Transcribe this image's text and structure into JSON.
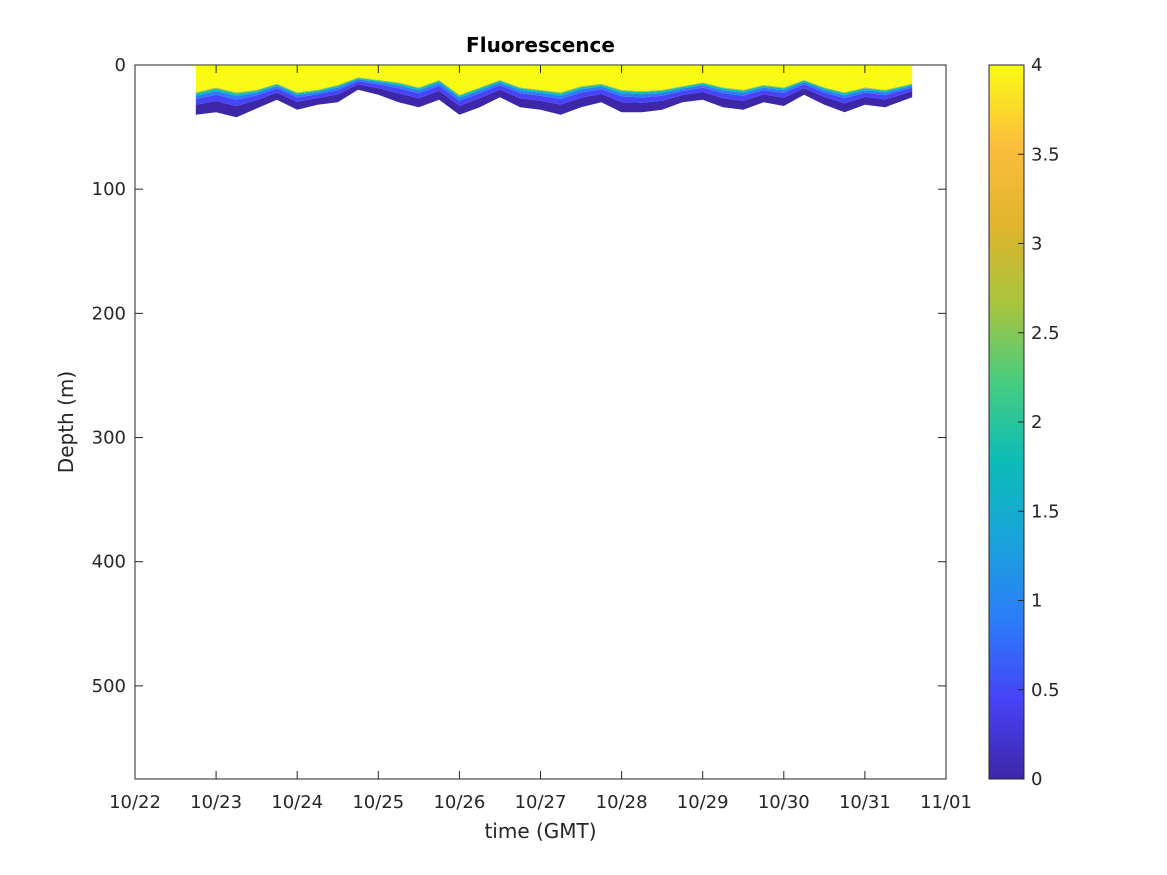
{
  "chart_data": {
    "type": "heatmap",
    "title": "Fluorescence",
    "xlabel": "time (GMT)",
    "ylabel": "Depth (m)",
    "x_range": [
      "10/22",
      "11/01"
    ],
    "x_ticks": [
      "10/22",
      "10/23",
      "10/24",
      "10/25",
      "10/26",
      "10/27",
      "10/28",
      "10/29",
      "10/30",
      "10/31",
      "11/01"
    ],
    "y_range": [
      0,
      575
    ],
    "y_reversed": true,
    "y_ticks": [
      0,
      100,
      200,
      300,
      400,
      500
    ],
    "colorbar": {
      "range": [
        0,
        4
      ],
      "ticks": [
        0,
        0.5,
        1,
        1.5,
        2,
        2.5,
        3,
        3.5,
        4
      ],
      "tick_labels": [
        "0",
        "0.5",
        "1",
        "1.5",
        "2",
        "2.5",
        "3",
        "3.5",
        "4"
      ],
      "colormap": "parula",
      "colors": [
        "#3e26a8",
        "#4743f8",
        "#2c7cf9",
        "#1aa3db",
        "#0bbcb7",
        "#48cc80",
        "#a9c43d",
        "#e1b42c",
        "#fcbe3c",
        "#f9fb15"
      ]
    },
    "data_extent": {
      "start": "10/22 18:00",
      "end": "10/31 14:00"
    },
    "mixed_layer_depth_profile": {
      "time": [
        "10/22 18:00",
        "10/23 00:00",
        "10/23 06:00",
        "10/23 12:00",
        "10/23 18:00",
        "10/24 00:00",
        "10/24 06:00",
        "10/24 12:00",
        "10/24 18:00",
        "10/25 00:00",
        "10/25 06:00",
        "10/25 12:00",
        "10/25 18:00",
        "10/26 00:00",
        "10/26 06:00",
        "10/26 12:00",
        "10/26 18:00",
        "10/27 00:00",
        "10/27 06:00",
        "10/27 12:00",
        "10/27 18:00",
        "10/28 00:00",
        "10/28 06:00",
        "10/28 12:00",
        "10/28 18:00",
        "10/29 00:00",
        "10/29 06:00",
        "10/29 12:00",
        "10/29 18:00",
        "10/30 00:00",
        "10/30 06:00",
        "10/30 12:00",
        "10/30 18:00",
        "10/31 00:00",
        "10/31 06:00",
        "10/31 14:00"
      ],
      "high_fluorescence_depth": [
        22,
        18,
        22,
        20,
        15,
        22,
        20,
        16,
        10,
        12,
        14,
        18,
        12,
        24,
        18,
        12,
        18,
        20,
        22,
        17,
        15,
        20,
        21,
        20,
        17,
        14,
        18,
        20,
        16,
        18,
        12,
        18,
        22,
        18,
        20,
        15
      ],
      "layer_bottom_depth": [
        40,
        38,
        42,
        35,
        28,
        36,
        32,
        30,
        20,
        24,
        30,
        34,
        28,
        40,
        34,
        26,
        34,
        36,
        40,
        34,
        30,
        38,
        38,
        36,
        30,
        28,
        34,
        36,
        30,
        33,
        24,
        32,
        38,
        32,
        34,
        26
      ]
    },
    "grid": false,
    "colorbar_position": "right"
  }
}
